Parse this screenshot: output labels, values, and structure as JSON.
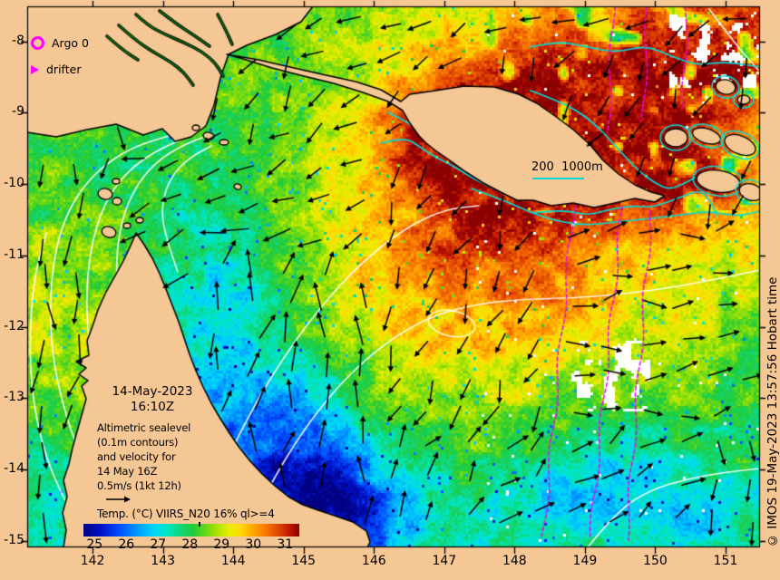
{
  "figure": {
    "background": "#f5c795",
    "frame_color": "#000000"
  },
  "legend": {
    "argo": {
      "label": "Argo 0",
      "color": "#ff00ff"
    },
    "drifter": {
      "label": "drifter",
      "color": "#ff00ff"
    }
  },
  "annotation": {
    "date_line1": "14-May-2023",
    "date_line2": "16:10Z",
    "description_lines": [
      "Altimetric sealevel",
      "(0.1m contours)",
      "and velocity for",
      "14 May 16Z",
      "0.5m/s (1kt 12h)"
    ]
  },
  "depth_scale": {
    "label": "200  1000m",
    "underline_color": "#00dcdc"
  },
  "colorbar": {
    "title": "Temp. (°C) VIIRS_N20 16% ql>=4",
    "tick_labels": [
      "25",
      "26",
      "27",
      "28",
      "29",
      "30",
      "31"
    ],
    "range": [
      24.65,
      31.45
    ],
    "marker_value": 28.3,
    "stops": [
      {
        "v": 24.65,
        "c": "#000080"
      },
      {
        "v": 25.2,
        "c": "#0012c8"
      },
      {
        "v": 25.8,
        "c": "#0050ff"
      },
      {
        "v": 26.4,
        "c": "#00a0ff"
      },
      {
        "v": 26.9,
        "c": "#00d8f8"
      },
      {
        "v": 27.3,
        "c": "#00e6c0"
      },
      {
        "v": 27.7,
        "c": "#12d677"
      },
      {
        "v": 28.1,
        "c": "#1ecb3c"
      },
      {
        "v": 28.5,
        "c": "#66d816"
      },
      {
        "v": 28.9,
        "c": "#b2e400"
      },
      {
        "v": 29.25,
        "c": "#e9ee00"
      },
      {
        "v": 29.6,
        "c": "#ffd800"
      },
      {
        "v": 30.0,
        "c": "#ffa600"
      },
      {
        "v": 30.4,
        "c": "#f87700"
      },
      {
        "v": 30.8,
        "c": "#e04600"
      },
      {
        "v": 31.15,
        "c": "#c01600"
      },
      {
        "v": 31.45,
        "c": "#8b0000"
      }
    ]
  },
  "axes": {
    "x_tick_labels": [
      "142",
      "143",
      "144",
      "145",
      "146",
      "147",
      "148",
      "149",
      "150",
      "151"
    ],
    "y_tick_labels": [
      "-8",
      "-9",
      "-10",
      "-11",
      "-12",
      "-13",
      "-14",
      "-15"
    ],
    "lon_range": [
      141.07,
      151.49
    ],
    "lat_range": [
      -7.51,
      -15.09
    ]
  },
  "credit": "© IMOS 19-May-2023 13:57:56 Hobart time",
  "map_style": {
    "land_color": "#f5c795",
    "coast_color": "#000000",
    "ssh_contour": "#ffffff",
    "bathy_contour": "#00dcdc",
    "drifter_track": "#ee00ee",
    "arrow_color": "#000000",
    "cloud_color": "#ffffff",
    "river_color": "#0c6b0c"
  }
}
